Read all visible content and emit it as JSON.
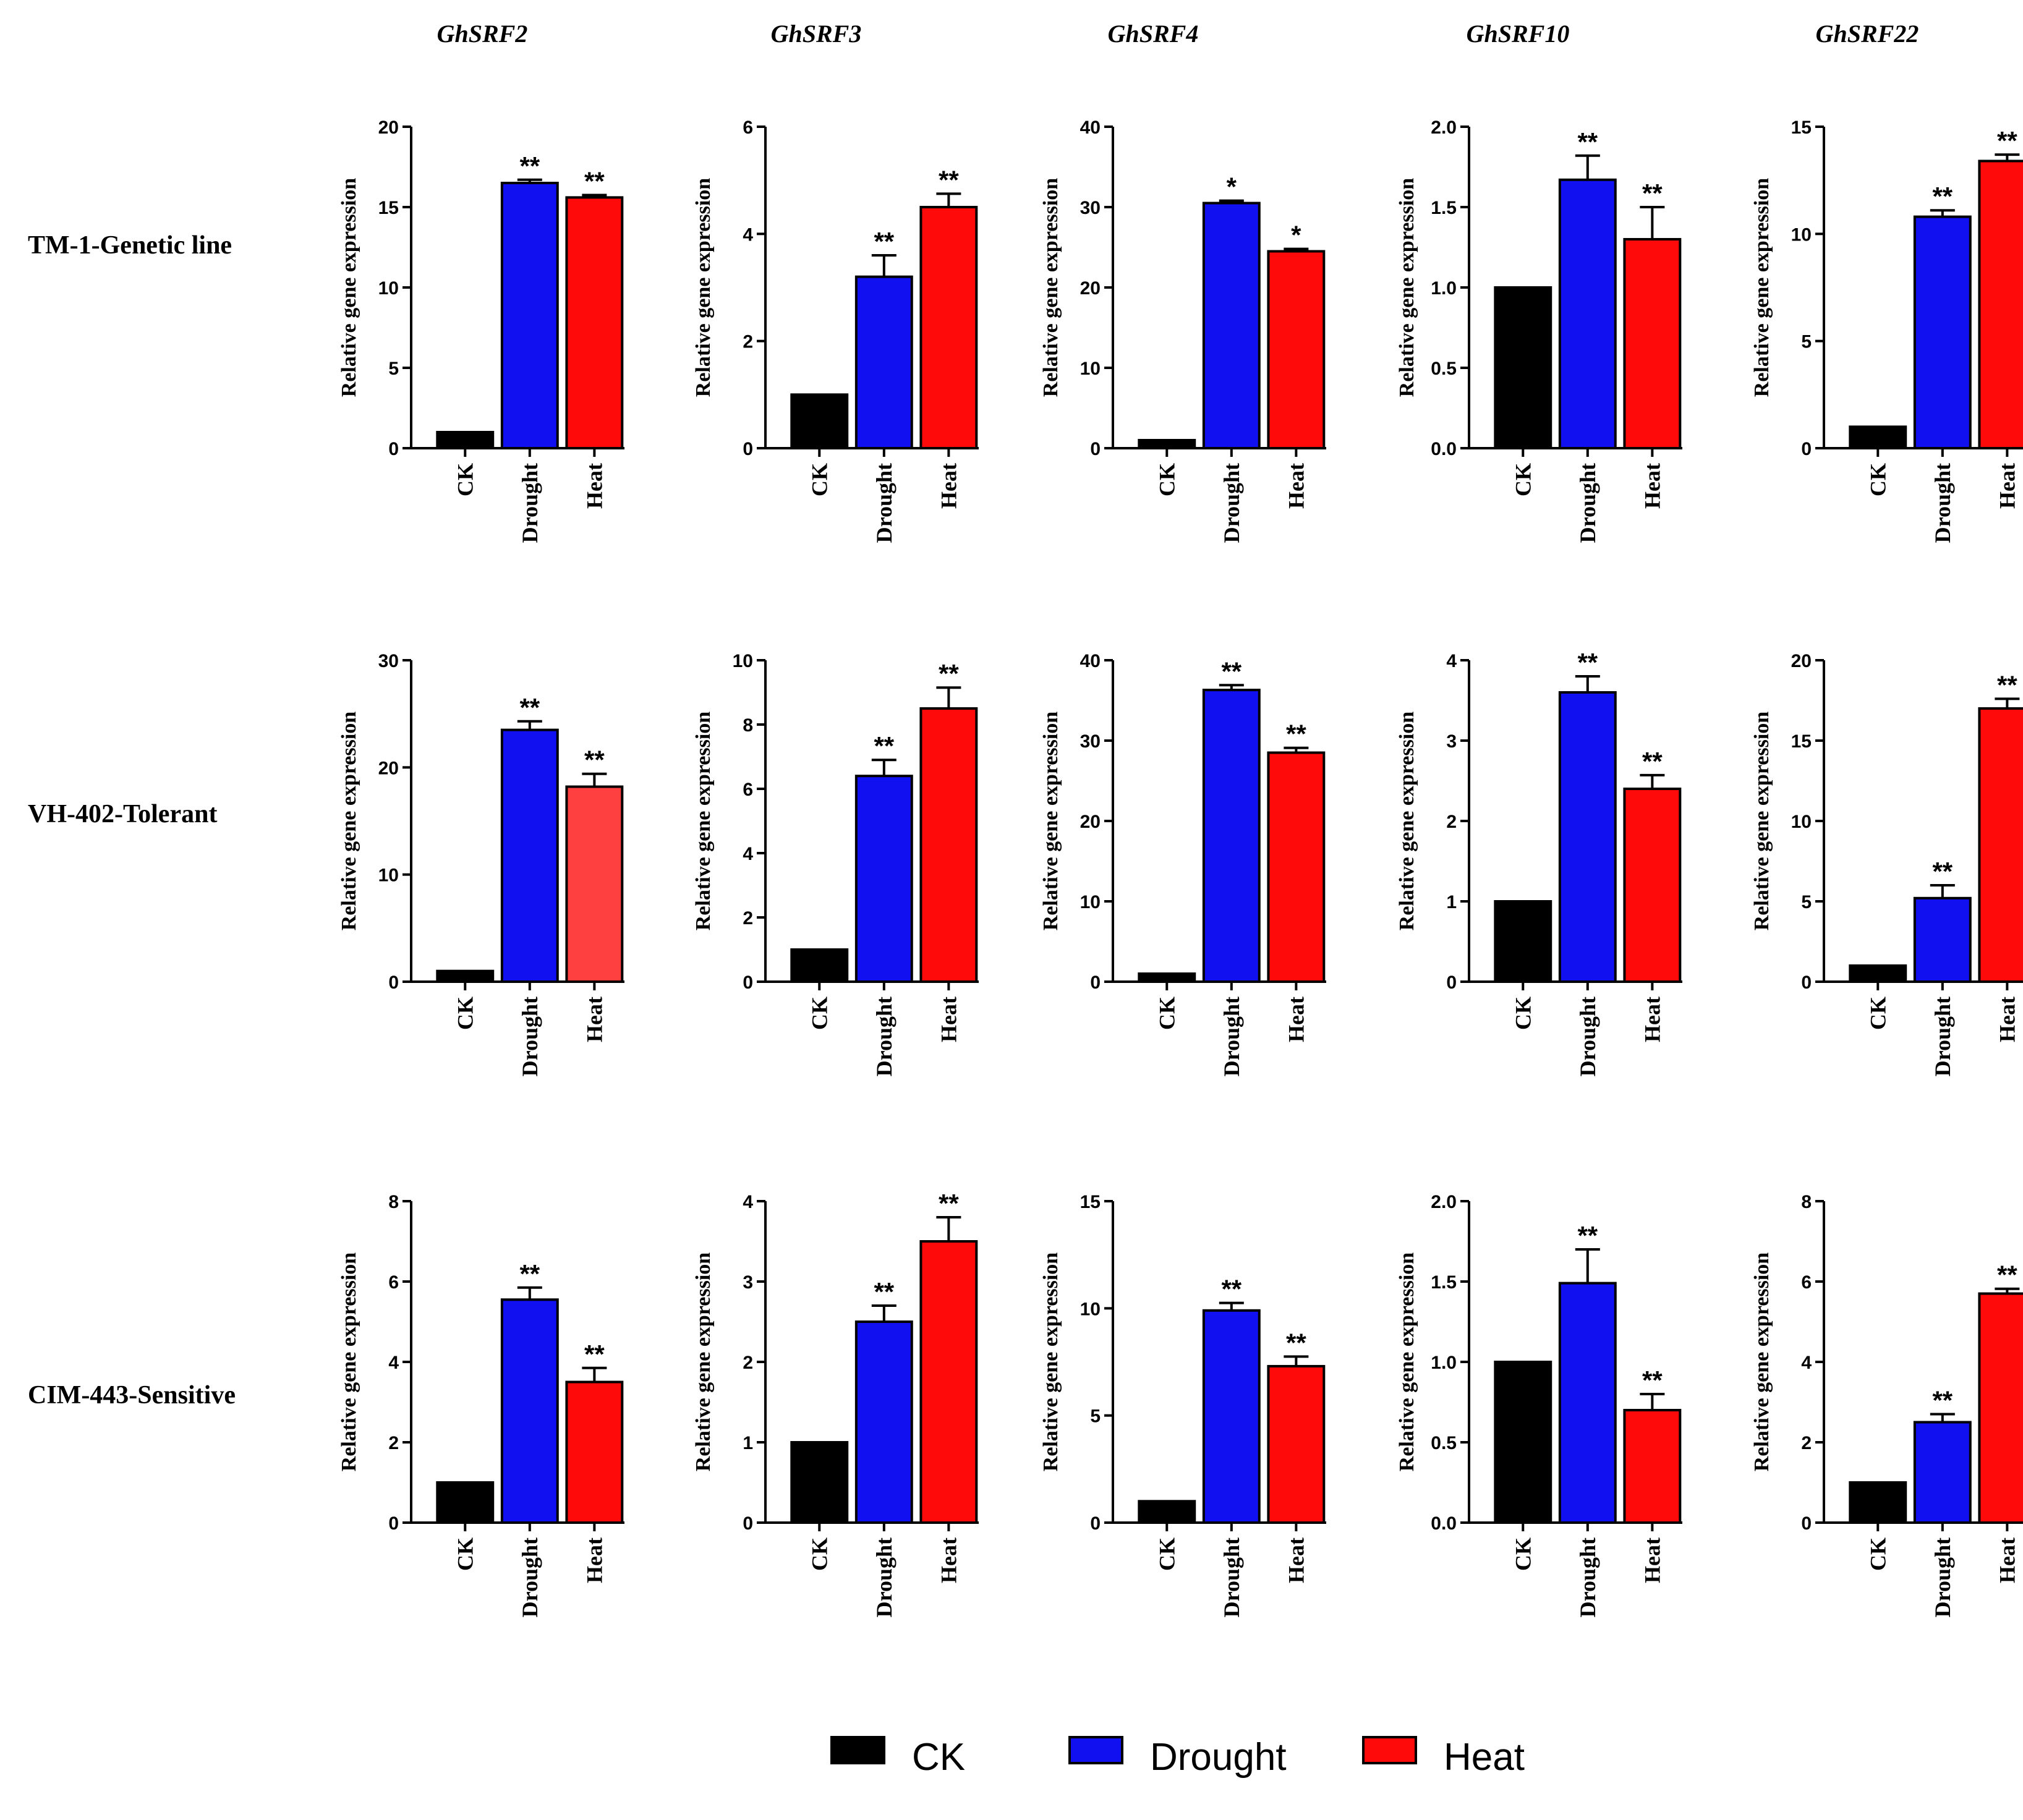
{
  "colors": {
    "CK": "#000000",
    "Drought": "#1010f0",
    "Heat": "#ff0a0a",
    "Heat_light": "#ff4040"
  },
  "legend": [
    {
      "label": "CK",
      "color": "#000000"
    },
    {
      "label": "Drought",
      "color": "#1010f0"
    },
    {
      "label": "Heat",
      "color": "#ff0a0a"
    }
  ],
  "genes": [
    "GhSRF2",
    "GhSRF3",
    "GhSRF4",
    "GhSRF10",
    "GhSRF22"
  ],
  "rows": [
    "TM-1-Genetic line",
    "VH-402-Tolerant",
    "CIM-443-Sensitive"
  ],
  "chart_data": [
    {
      "type": "bar",
      "gene": "GhSRF2",
      "row": "TM-1-Genetic line",
      "ylabel": "Relative gene expression",
      "categories": [
        "CK",
        "Drought",
        "Heat"
      ],
      "values": [
        1,
        16.5,
        15.6
      ],
      "errors": [
        0,
        0.2,
        0.15
      ],
      "significance": [
        "",
        "**",
        "**"
      ],
      "ylim": [
        0,
        20
      ],
      "yticks": [
        "0",
        "5",
        "10",
        "15",
        "20"
      ]
    },
    {
      "type": "bar",
      "gene": "GhSRF3",
      "row": "TM-1-Genetic line",
      "ylabel": "Relative gene expression",
      "categories": [
        "CK",
        "Drought",
        "Heat"
      ],
      "values": [
        1,
        3.2,
        4.5
      ],
      "errors": [
        0,
        0.4,
        0.25
      ],
      "significance": [
        "",
        "**",
        "**"
      ],
      "ylim": [
        0,
        6
      ],
      "yticks": [
        "0",
        "2",
        "4",
        "6"
      ]
    },
    {
      "type": "bar",
      "gene": "GhSRF4",
      "row": "TM-1-Genetic line",
      "ylabel": "Relative gene expression",
      "categories": [
        "CK",
        "Drought",
        "Heat"
      ],
      "values": [
        1,
        30.5,
        24.5
      ],
      "errors": [
        0,
        0.3,
        0.3
      ],
      "significance": [
        "",
        "*",
        "*"
      ],
      "ylim": [
        0,
        40
      ],
      "yticks": [
        "0",
        "10",
        "20",
        "30",
        "40"
      ]
    },
    {
      "type": "bar",
      "gene": "GhSRF10",
      "row": "TM-1-Genetic line",
      "ylabel": "Relative gene expression",
      "categories": [
        "CK",
        "Drought",
        "Heat"
      ],
      "values": [
        1.0,
        1.67,
        1.3
      ],
      "errors": [
        0,
        0.15,
        0.2
      ],
      "significance": [
        "",
        "**",
        "**"
      ],
      "ylim": [
        0,
        2.0
      ],
      "yticks": [
        "0.0",
        "0.5",
        "1.0",
        "1.5",
        "2.0"
      ]
    },
    {
      "type": "bar",
      "gene": "GhSRF22",
      "row": "TM-1-Genetic line",
      "ylabel": "Relative gene expression",
      "categories": [
        "CK",
        "Drought",
        "Heat"
      ],
      "values": [
        1,
        10.8,
        13.4
      ],
      "errors": [
        0,
        0.3,
        0.3
      ],
      "significance": [
        "",
        "**",
        "**"
      ],
      "ylim": [
        0,
        15
      ],
      "yticks": [
        "0",
        "5",
        "10",
        "15"
      ]
    },
    {
      "type": "bar",
      "gene": "GhSRF2",
      "row": "VH-402-Tolerant",
      "ylabel": "Relative gene expression",
      "categories": [
        "CK",
        "Drought",
        "Heat"
      ],
      "values": [
        1,
        23.5,
        18.2
      ],
      "errors": [
        0,
        0.8,
        1.2
      ],
      "significance": [
        "",
        "**",
        "**"
      ],
      "ylim": [
        0,
        30
      ],
      "yticks": [
        "0",
        "10",
        "20",
        "30"
      ],
      "heat_color": "#ff4040"
    },
    {
      "type": "bar",
      "gene": "GhSRF3",
      "row": "VH-402-Tolerant",
      "ylabel": "Relative gene expression",
      "categories": [
        "CK",
        "Drought",
        "Heat"
      ],
      "values": [
        1,
        6.4,
        8.5
      ],
      "errors": [
        0,
        0.5,
        0.65
      ],
      "significance": [
        "",
        "**",
        "**"
      ],
      "ylim": [
        0,
        10
      ],
      "yticks": [
        "0",
        "2",
        "4",
        "6",
        "8",
        "10"
      ]
    },
    {
      "type": "bar",
      "gene": "GhSRF4",
      "row": "VH-402-Tolerant",
      "ylabel": "Relative gene expression",
      "categories": [
        "CK",
        "Drought",
        "Heat"
      ],
      "values": [
        1,
        36.3,
        28.5
      ],
      "errors": [
        0,
        0.6,
        0.6
      ],
      "significance": [
        "",
        "**",
        "**"
      ],
      "ylim": [
        0,
        40
      ],
      "yticks": [
        "0",
        "10",
        "20",
        "30",
        "40"
      ]
    },
    {
      "type": "bar",
      "gene": "GhSRF10",
      "row": "VH-402-Tolerant",
      "ylabel": "Relative gene expression",
      "categories": [
        "CK",
        "Drought",
        "Heat"
      ],
      "values": [
        1,
        3.6,
        2.4
      ],
      "errors": [
        0,
        0.2,
        0.17
      ],
      "significance": [
        "",
        "**",
        "**"
      ],
      "ylim": [
        0,
        4
      ],
      "yticks": [
        "0",
        "1",
        "2",
        "3",
        "4"
      ]
    },
    {
      "type": "bar",
      "gene": "GhSRF22",
      "row": "VH-402-Tolerant",
      "ylabel": "Relative gene expression",
      "categories": [
        "CK",
        "Drought",
        "Heat"
      ],
      "values": [
        1,
        5.2,
        17.0
      ],
      "errors": [
        0,
        0.8,
        0.6
      ],
      "significance": [
        "",
        "**",
        "**"
      ],
      "ylim": [
        0,
        20
      ],
      "yticks": [
        "0",
        "5",
        "10",
        "15",
        "20"
      ]
    },
    {
      "type": "bar",
      "gene": "GhSRF2",
      "row": "CIM-443-Sensitive",
      "ylabel": "Relative gene expression",
      "categories": [
        "CK",
        "Drought",
        "Heat"
      ],
      "values": [
        1,
        5.55,
        3.5
      ],
      "errors": [
        0,
        0.3,
        0.35
      ],
      "significance": [
        "",
        "**",
        "**"
      ],
      "ylim": [
        0,
        8
      ],
      "yticks": [
        "0",
        "2",
        "4",
        "6",
        "8"
      ]
    },
    {
      "type": "bar",
      "gene": "GhSRF3",
      "row": "CIM-443-Sensitive",
      "ylabel": "Relative gene expression",
      "categories": [
        "CK",
        "Drought",
        "Heat"
      ],
      "values": [
        1,
        2.5,
        3.5
      ],
      "errors": [
        0,
        0.2,
        0.3
      ],
      "significance": [
        "",
        "**",
        "**"
      ],
      "ylim": [
        0,
        4
      ],
      "yticks": [
        "0",
        "1",
        "2",
        "3",
        "4"
      ]
    },
    {
      "type": "bar",
      "gene": "GhSRF4",
      "row": "CIM-443-Sensitive",
      "ylabel": "Relative gene expression",
      "categories": [
        "CK",
        "Drought",
        "Heat"
      ],
      "values": [
        1,
        9.9,
        7.3
      ],
      "errors": [
        0,
        0.35,
        0.45
      ],
      "significance": [
        "",
        "**",
        "**"
      ],
      "ylim": [
        0,
        15
      ],
      "yticks": [
        "0",
        "5",
        "10",
        "15"
      ]
    },
    {
      "type": "bar",
      "gene": "GhSRF10",
      "row": "CIM-443-Sensitive",
      "ylabel": "Relative gene expression",
      "categories": [
        "CK",
        "Drought",
        "Heat"
      ],
      "values": [
        1.0,
        1.49,
        0.7
      ],
      "errors": [
        0,
        0.21,
        0.1
      ],
      "significance": [
        "",
        "**",
        "**"
      ],
      "ylim": [
        0,
        2.0
      ],
      "yticks": [
        "0.0",
        "0.5",
        "1.0",
        "1.5",
        "2.0"
      ]
    },
    {
      "type": "bar",
      "gene": "GhSRF22",
      "row": "CIM-443-Sensitive",
      "ylabel": "Relative gene expression",
      "categories": [
        "CK",
        "Drought",
        "Heat"
      ],
      "values": [
        1,
        2.5,
        5.7
      ],
      "errors": [
        0,
        0.2,
        0.12
      ],
      "significance": [
        "",
        "**",
        "**"
      ],
      "ylim": [
        0,
        8
      ],
      "yticks": [
        "0",
        "2",
        "4",
        "6",
        "8"
      ]
    }
  ]
}
